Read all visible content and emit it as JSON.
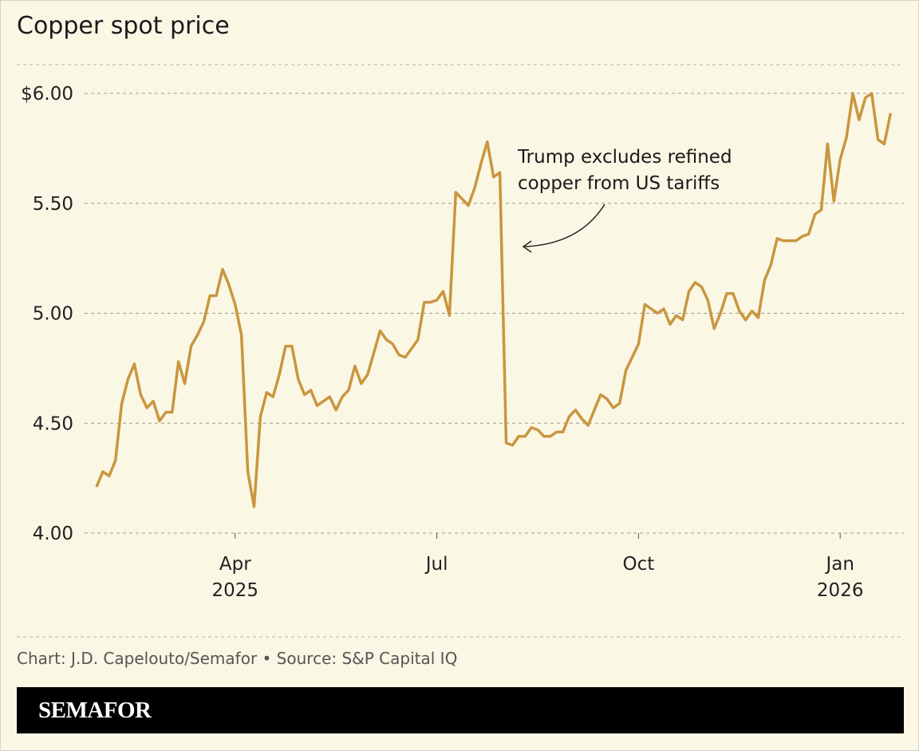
{
  "chart_data": {
    "type": "line",
    "title": "Copper spot price",
    "annotation": "Trump excludes refined copper from US tariffs",
    "source": "Chart: J.D. Capelouto/Semafor • Source: S&P Capital IQ",
    "brand": "SEMAFOR",
    "color": "#c9963f",
    "grid": true,
    "ylim": [
      4.0,
      6.0
    ],
    "yticks": [
      {
        "value": 4.0,
        "label": "4.00"
      },
      {
        "value": 4.5,
        "label": "4.50"
      },
      {
        "value": 5.0,
        "label": "5.00"
      },
      {
        "value": 5.5,
        "label": "5.50"
      },
      {
        "value": 6.0,
        "label": "$6.00"
      }
    ],
    "categories": [
      null,
      null,
      null,
      null,
      null,
      null,
      null,
      null,
      null,
      null,
      null,
      null,
      null,
      null,
      null,
      null,
      null,
      null,
      null,
      null,
      null,
      null,
      "Apr 2025",
      null,
      null,
      null,
      null,
      null,
      null,
      null,
      null,
      null,
      null,
      null,
      null,
      null,
      null,
      null,
      null,
      null,
      null,
      null,
      null,
      null,
      null,
      null,
      null,
      null,
      null,
      null,
      null,
      null,
      null,
      null,
      "Jul",
      null,
      null,
      null,
      null,
      null,
      null,
      null,
      null,
      null,
      null,
      null,
      null,
      null,
      null,
      null,
      null,
      null,
      null,
      null,
      null,
      null,
      null,
      null,
      null,
      null,
      null,
      null,
      null,
      null,
      null,
      null,
      "Oct",
      null,
      null,
      null,
      null,
      null,
      null,
      null,
      null,
      null,
      null,
      null,
      null,
      null,
      null,
      null,
      null,
      null,
      null,
      null,
      null,
      null,
      null,
      null,
      null,
      null,
      null,
      null,
      null,
      null,
      null,
      null,
      "Jan 2026",
      null,
      null,
      null,
      null,
      null,
      null,
      null,
      null
    ],
    "values": [
      4.21,
      4.28,
      4.26,
      4.33,
      4.59,
      4.7,
      4.77,
      4.63,
      4.57,
      4.6,
      4.51,
      4.55,
      4.55,
      4.78,
      4.68,
      4.85,
      4.9,
      4.96,
      5.08,
      5.08,
      5.2,
      5.13,
      5.04,
      4.9,
      4.28,
      4.12,
      4.53,
      4.64,
      4.62,
      4.72,
      4.85,
      4.85,
      4.7,
      4.63,
      4.65,
      4.58,
      4.6,
      4.62,
      4.56,
      4.62,
      4.65,
      4.76,
      4.68,
      4.72,
      4.82,
      4.92,
      4.88,
      4.86,
      4.81,
      4.8,
      4.84,
      4.88,
      5.05,
      5.05,
      5.06,
      5.1,
      4.99,
      5.55,
      5.52,
      5.49,
      5.57,
      5.68,
      5.78,
      5.62,
      5.64,
      4.41,
      4.4,
      4.44,
      4.44,
      4.48,
      4.47,
      4.44,
      4.44,
      4.46,
      4.46,
      4.53,
      4.56,
      4.52,
      4.49,
      4.56,
      4.63,
      4.61,
      4.57,
      4.59,
      4.74,
      4.8,
      4.86,
      5.04,
      5.02,
      5.0,
      5.02,
      4.95,
      4.99,
      4.97,
      5.1,
      5.14,
      5.12,
      5.06,
      4.93,
      5.0,
      5.09,
      5.09,
      5.01,
      4.97,
      5.01,
      4.98,
      5.15,
      5.22,
      5.34,
      5.33,
      5.33,
      5.33,
      5.35,
      5.36,
      5.45,
      5.47,
      5.77,
      5.51,
      5.7,
      5.8,
      6.0,
      5.88,
      5.98,
      6.0,
      5.79,
      5.77,
      5.91
    ]
  }
}
